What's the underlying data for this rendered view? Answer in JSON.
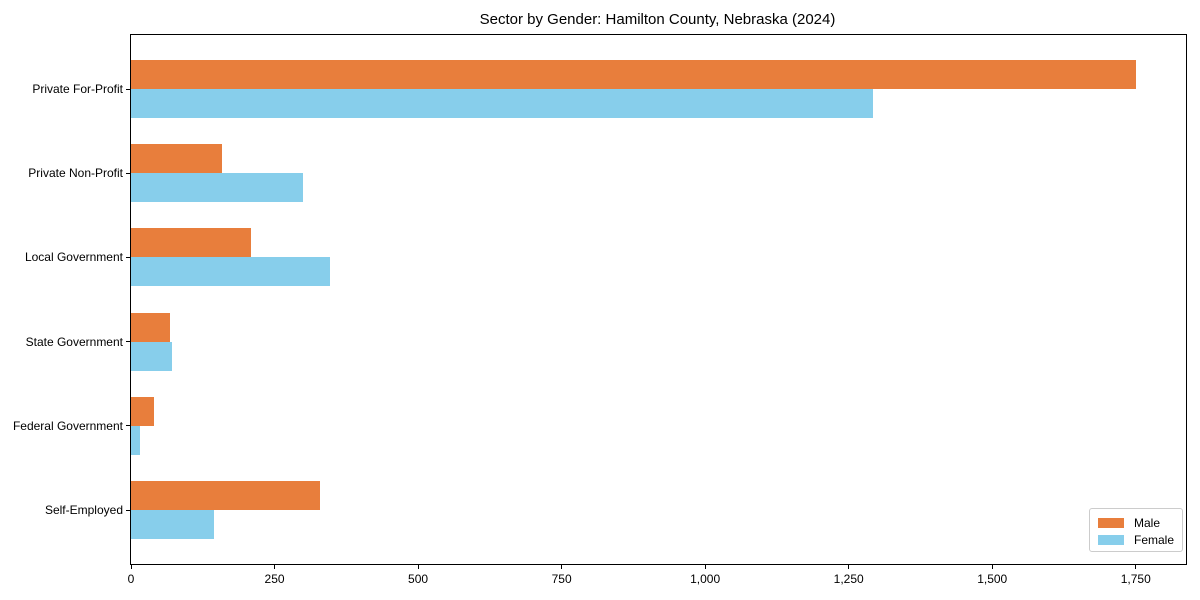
{
  "chart_data": {
    "type": "bar",
    "orientation": "horizontal",
    "title": "Sector by Gender: Hamilton County, Nebraska (2024)",
    "xlabel": "",
    "ylabel": "",
    "categories": [
      "Private For-Profit",
      "Private Non-Profit",
      "Local Government",
      "State Government",
      "Federal Government",
      "Self-Employed"
    ],
    "series": [
      {
        "name": "Male",
        "color": "#e87e3c",
        "values": [
          1750,
          158,
          209,
          68,
          40,
          329
        ]
      },
      {
        "name": "Female",
        "color": "#87ceeb",
        "values": [
          1292,
          300,
          346,
          71,
          16,
          145
        ]
      }
    ],
    "xlim": [
      0,
      1837.5
    ],
    "xticks": {
      "values": [
        0,
        250,
        500,
        750,
        1000,
        1250,
        1500,
        1750
      ],
      "labels": [
        "0",
        "250",
        "500",
        "750",
        "1,000",
        "1,250",
        "1,500",
        "1,750"
      ]
    },
    "grid": false,
    "legend_position": "lower right",
    "axis_color": "#000000",
    "background_color": "#ffffff"
  }
}
